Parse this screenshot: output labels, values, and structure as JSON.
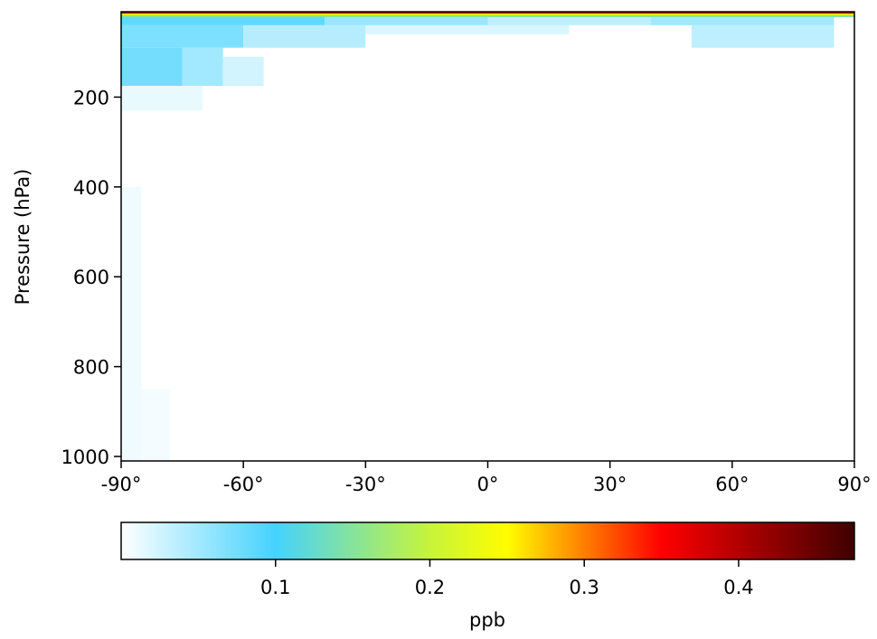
{
  "chart_data": {
    "type": "heatmap",
    "title": "",
    "xlabel": "",
    "ylabel": "Pressure (hPa)",
    "x_range": [
      -90,
      90
    ],
    "y_range": [
      1010,
      10
    ],
    "y_inverted": true,
    "x_ticks": [
      {
        "value": -90,
        "label": "-90°"
      },
      {
        "value": -60,
        "label": "-60°"
      },
      {
        "value": -30,
        "label": "-30°"
      },
      {
        "value": 0,
        "label": "0°"
      },
      {
        "value": 30,
        "label": "30°"
      },
      {
        "value": 60,
        "label": "60°"
      },
      {
        "value": 90,
        "label": "90°"
      }
    ],
    "y_ticks": [
      {
        "value": 200,
        "label": "200"
      },
      {
        "value": 400,
        "label": "400"
      },
      {
        "value": 600,
        "label": "600"
      },
      {
        "value": 800,
        "label": "800"
      },
      {
        "value": 1000,
        "label": "1000"
      }
    ],
    "colorbar": {
      "label": "ppb",
      "range": [
        0,
        0.475
      ],
      "ticks": [
        {
          "value": 0.1,
          "label": "0.1"
        },
        {
          "value": 0.2,
          "label": "0.2"
        },
        {
          "value": 0.3,
          "label": "0.3"
        },
        {
          "value": 0.4,
          "label": "0.4"
        }
      ],
      "stops": [
        {
          "value": 0.0,
          "color": "#ffffff"
        },
        {
          "value": 0.1,
          "color": "#45d2fe"
        },
        {
          "value": 0.2,
          "color": "#c7f43a"
        },
        {
          "value": 0.25,
          "color": "#fffd00"
        },
        {
          "value": 0.35,
          "color": "#ff0000"
        },
        {
          "value": 0.475,
          "color": "#3f0000"
        }
      ]
    },
    "cells": [
      {
        "lat": [
          -90,
          90
        ],
        "p": [
          10,
          14
        ],
        "value": 0.4
      },
      {
        "lat": [
          -90,
          90
        ],
        "p": [
          14,
          18
        ],
        "value": 0.26
      },
      {
        "lat": [
          -90,
          90
        ],
        "p": [
          18,
          22
        ],
        "value": 0.15
      },
      {
        "lat": [
          -90,
          -40
        ],
        "p": [
          22,
          40
        ],
        "value": 0.085
      },
      {
        "lat": [
          -40,
          0
        ],
        "p": [
          22,
          40
        ],
        "value": 0.055
      },
      {
        "lat": [
          0,
          40
        ],
        "p": [
          22,
          40
        ],
        "value": 0.035
      },
      {
        "lat": [
          40,
          85
        ],
        "p": [
          22,
          40
        ],
        "value": 0.05
      },
      {
        "lat": [
          -90,
          -60
        ],
        "p": [
          40,
          90
        ],
        "value": 0.07
      },
      {
        "lat": [
          -60,
          -30
        ],
        "p": [
          40,
          90
        ],
        "value": 0.04
      },
      {
        "lat": [
          -30,
          20
        ],
        "p": [
          40,
          60
        ],
        "value": 0.02
      },
      {
        "lat": [
          50,
          85
        ],
        "p": [
          40,
          90
        ],
        "value": 0.035
      },
      {
        "lat": [
          -90,
          -75
        ],
        "p": [
          90,
          175
        ],
        "value": 0.075
      },
      {
        "lat": [
          -75,
          -65
        ],
        "p": [
          90,
          175
        ],
        "value": 0.05
      },
      {
        "lat": [
          -65,
          -55
        ],
        "p": [
          110,
          175
        ],
        "value": 0.025
      },
      {
        "lat": [
          -90,
          -70
        ],
        "p": [
          175,
          230
        ],
        "value": 0.012
      },
      {
        "lat": [
          -90,
          -85
        ],
        "p": [
          400,
          1010
        ],
        "value": 0.008
      },
      {
        "lat": [
          -85,
          -78
        ],
        "p": [
          850,
          1010
        ],
        "value": 0.006
      }
    ]
  }
}
